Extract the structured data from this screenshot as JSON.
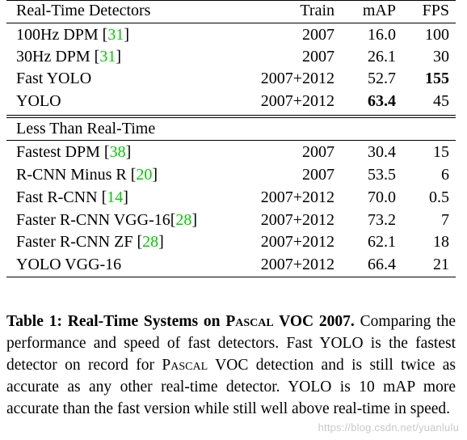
{
  "table": {
    "header": {
      "col_name": "Real-Time Detectors",
      "col_train": "Train",
      "col_map": "mAP",
      "col_fps": "FPS"
    },
    "realtime_rows": [
      {
        "name": "100Hz DPM ",
        "ref": "31",
        "train": "2007",
        "map": "16.0",
        "fps": "100"
      },
      {
        "name": "30Hz DPM ",
        "ref": "31",
        "train": "2007",
        "map": "26.1",
        "fps": "30"
      },
      {
        "name": "Fast YOLO",
        "ref": "",
        "train": "2007+2012",
        "map": "52.7",
        "fps": "155"
      },
      {
        "name": "YOLO",
        "ref": "",
        "train": "2007+2012",
        "map": "63.4",
        "fps": "45"
      }
    ],
    "section2_title": "Less Than Real-Time",
    "slow_rows": [
      {
        "name": "Fastest DPM ",
        "ref": "38",
        "train": "2007",
        "map": "30.4",
        "fps": "15"
      },
      {
        "name": "R-CNN Minus R ",
        "ref": "20",
        "train": "2007",
        "map": "53.5",
        "fps": "6"
      },
      {
        "name": "Fast R-CNN ",
        "ref": "14",
        "train": "2007+2012",
        "map": "70.0",
        "fps": "0.5"
      },
      {
        "name": "Faster R-CNN VGG-16",
        "ref": "28",
        "train": "2007+2012",
        "map": "73.2",
        "fps": "7"
      },
      {
        "name": "Faster R-CNN ZF ",
        "ref": "28",
        "train": "2007+2012",
        "map": "62.1",
        "fps": "18"
      },
      {
        "name": "YOLO VGG-16",
        "ref": "",
        "train": "2007+2012",
        "map": "66.4",
        "fps": "21"
      }
    ]
  },
  "caption": {
    "head_a": "Table 1: Real-Time Systems on ",
    "head_sc": "Pascal",
    "head_b": " VOC 2007.",
    "body_a": " Comparing the performance and speed of fast detectors. Fast YOLO is the fastest detector on record for ",
    "body_sc": "Pascal",
    "body_b": " VOC detection and is still twice as accurate as any other real-time detector. YOLO is 10 mAP more accurate than the fast version while still well above real-time in speed."
  },
  "watermark": "https://blog.csdn.net/yuanlulu"
}
